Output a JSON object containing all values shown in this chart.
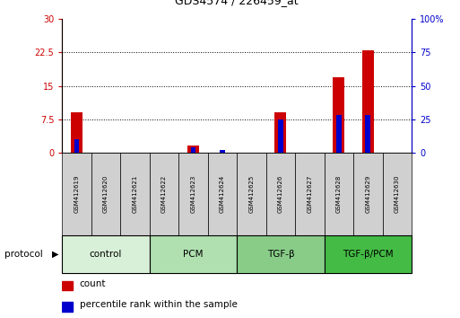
{
  "title": "GDS4574 / 226459_at",
  "samples": [
    "GSM412619",
    "GSM412620",
    "GSM412621",
    "GSM412622",
    "GSM412623",
    "GSM412624",
    "GSM412625",
    "GSM412626",
    "GSM412627",
    "GSM412628",
    "GSM412629",
    "GSM412630"
  ],
  "count": [
    9.0,
    0.0,
    0.0,
    0.0,
    1.5,
    0.0,
    0.0,
    9.0,
    0.0,
    17.0,
    23.0,
    0.0
  ],
  "percentile": [
    10.0,
    0.0,
    0.0,
    0.0,
    4.0,
    2.0,
    0.0,
    25.0,
    0.0,
    28.0,
    28.0,
    0.0
  ],
  "count_color": "#cc0000",
  "percentile_color": "#0000cc",
  "ylim_left": [
    0,
    30
  ],
  "ylim_right": [
    0,
    100
  ],
  "yticks_left": [
    0,
    7.5,
    15,
    22.5,
    30
  ],
  "yticks_right": [
    0,
    25,
    50,
    75,
    100
  ],
  "ytick_labels_left": [
    "0",
    "7.5",
    "15",
    "22.5",
    "30"
  ],
  "ytick_labels_right": [
    "0",
    "25",
    "50",
    "75",
    "100%"
  ],
  "groups": [
    {
      "label": "control",
      "start": 0,
      "end": 2,
      "color": "#d8f0d8"
    },
    {
      "label": "PCM",
      "start": 3,
      "end": 5,
      "color": "#b0e0b0"
    },
    {
      "label": "TGF-β",
      "start": 6,
      "end": 8,
      "color": "#88cc88"
    },
    {
      "label": "TGF-β/PCM",
      "start": 9,
      "end": 11,
      "color": "#44bb44"
    }
  ],
  "protocol_label": "protocol",
  "count_bar_width": 0.4,
  "percentile_bar_width": 0.18,
  "sample_box_color": "#d0d0d0",
  "background_color": "#ffffff",
  "legend_count": "count",
  "legend_percentile": "percentile rank within the sample"
}
